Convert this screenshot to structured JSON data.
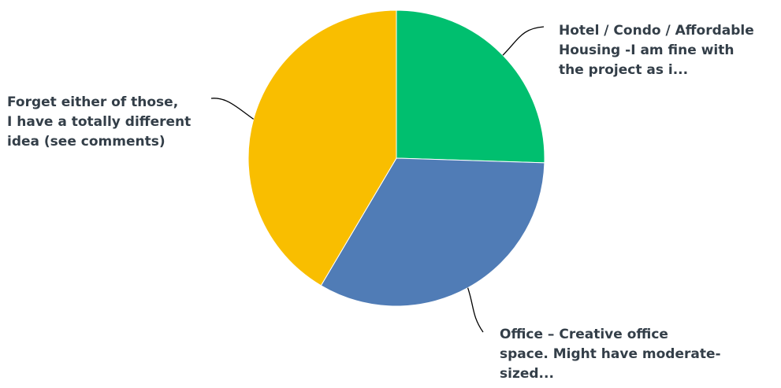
{
  "chart_data": {
    "type": "pie",
    "slices": [
      {
        "label": "Hotel / Condo / Affordable\nHousing -I am fine with\nthe project as i...",
        "value": 25.5,
        "color": "#00bf6f"
      },
      {
        "label": "Office – Creative office\nspace. Might have moderate-\nsized...",
        "value": 33.0,
        "color": "#507cb6"
      },
      {
        "label": "Forget either of those,\nI have a totally different\nidea (see comments)",
        "value": 41.5,
        "color": "#f9be00"
      }
    ],
    "start_angle_deg": 0,
    "direction": "clockwise",
    "legend": "none",
    "label_placement": "outside-with-leader-lines",
    "label_color": "#333e48",
    "leader_line_color": "#000000"
  }
}
